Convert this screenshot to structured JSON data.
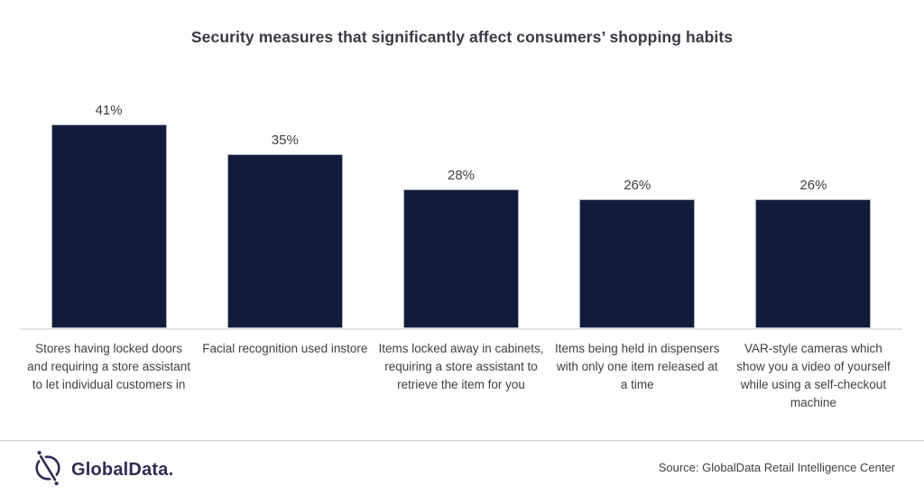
{
  "title": "Security measures that significantly affect consumers’ shopping habits",
  "chart_data": {
    "type": "bar",
    "title": "Security measures that significantly affect consumers’ shopping habits",
    "categories": [
      "Stores having locked doors and requiring a store assistant to let individual customers in",
      "Facial recognition used instore",
      "Items locked away in cabinets, requiring a store assistant to retrieve the item for you",
      "Items being held in dispensers with only one item released at a time",
      "VAR-style cameras which show you a video of yourself while using a self-checkout machine"
    ],
    "values": [
      41,
      35,
      28,
      26,
      26
    ],
    "value_labels": [
      "41%",
      "35%",
      "28%",
      "26%",
      "26%"
    ],
    "xlabel": "",
    "ylabel": "",
    "ylim": [
      0,
      45
    ],
    "grid": false,
    "legend": false,
    "data_labels_position": "above-bars",
    "bar_color": "#121c3a"
  },
  "footer": {
    "logo_icon": "globaldata-compass-icon",
    "logo_text": "GlobalData.",
    "source": "Source: GlobalData Retail Intelligence Center"
  },
  "colors": {
    "background": "#ffffff",
    "bar": "#121c3a",
    "bar_border": "#a9b0c0",
    "title_text": "#3a3a42",
    "label_text": "#404040",
    "axis_line": "#e4e4e7",
    "divider": "#c9c9cd",
    "logo": "#332c55"
  }
}
